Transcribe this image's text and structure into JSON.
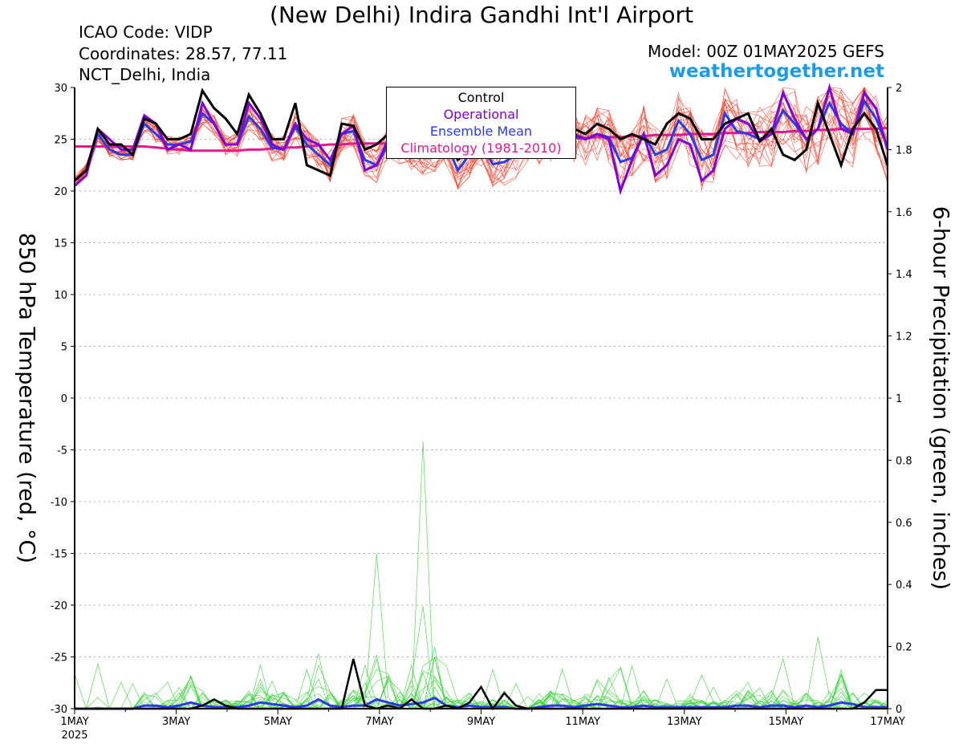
{
  "header": {
    "title": "(New Delhi) Indira Gandhi Int'l Airport",
    "icao": "ICAO Code: VIDP",
    "coordinates": "Coordinates: 28.57, 77.11",
    "location": "NCT_Delhi, India",
    "model": "Model: 00Z 01MAY2025 GEFS",
    "website": "weathertogether.net"
  },
  "legend": {
    "control": "Control",
    "operational": "Operational",
    "ensemble_mean": "Ensemble Mean",
    "climatology": "Climatology (1981-2010)"
  },
  "colors": {
    "control": "#000000",
    "operational": "#7f00d4",
    "ensemble_mean": "#2a3be8",
    "climatology": "#e6188c",
    "members": "#f0412d",
    "precip_members": "#3cd23c",
    "website": "#1e9be6",
    "grid": "#aaaaaa"
  },
  "chart_data": {
    "type": "line",
    "ylabel": "850 hPa Temperature (red, °C)",
    "y2label": "6-hour Precipitation (green, inches)",
    "ylim": [
      -30,
      30
    ],
    "y2lim": [
      0,
      2
    ],
    "yticks": [
      "30",
      "25",
      "20",
      "15",
      "10",
      "5",
      "0",
      "-5",
      "-10",
      "-15",
      "-20",
      "-25",
      "-30"
    ],
    "y2ticks": [
      "2",
      "1.8",
      "1.6",
      "1.4",
      "1.2",
      "1",
      "0.8",
      "0.6",
      "0.4",
      "0.2",
      "0"
    ],
    "xticks": [
      "1MAY",
      "3MAY",
      "5MAY",
      "7MAY",
      "9MAY",
      "11MAY",
      "13MAY",
      "15MAY",
      "17MAY"
    ],
    "xtick_sublabel": "2025",
    "x_range_days": [
      0,
      16
    ],
    "x_step_hours": 6,
    "grid": true,
    "temperature": {
      "control": [
        21.0,
        22.0,
        26.0,
        24.5,
        24.5,
        23.5,
        27.0,
        26.5,
        25.0,
        25.0,
        25.5,
        29.7,
        28.0,
        27.0,
        25.5,
        29.3,
        27.5,
        25.0,
        25.0,
        28.5,
        22.5,
        22.0,
        21.5,
        26.5,
        26.3,
        24.0,
        24.5,
        25.5,
        26.0,
        24.0,
        23.5,
        24.0,
        25.0,
        23.0,
        24.0,
        24.5,
        24.8,
        23.8,
        24.2,
        25.5,
        25.5,
        25.5,
        26.5,
        26.0,
        25.5,
        26.5,
        26.0,
        25.0,
        25.5,
        25.0,
        24.5,
        26.5,
        27.5,
        27.0,
        25.0,
        25.0,
        26.5,
        27.0,
        27.5,
        24.8,
        26.0,
        23.5,
        23.0,
        24.0,
        28.5,
        25.5,
        22.5,
        26.0,
        27.5,
        26.0,
        22.5
      ],
      "operational": [
        20.5,
        21.5,
        26.0,
        25.0,
        24.0,
        24.0,
        27.3,
        26.5,
        24.0,
        24.5,
        24.0,
        28.5,
        26.5,
        24.5,
        24.5,
        28.5,
        27.0,
        24.5,
        24.0,
        26.5,
        25.0,
        24.5,
        23.0,
        25.5,
        26.3,
        22.0,
        22.5,
        25.0,
        24.5,
        24.0,
        23.5,
        24.5,
        25.0,
        23.5,
        24.0,
        25.0,
        24.5,
        24.0,
        24.0,
        25.0,
        24.5,
        25.0,
        25.5,
        25.5,
        25.0,
        25.5,
        25.0,
        20.0,
        23.0,
        25.5,
        21.5,
        22.5,
        25.0,
        24.5,
        21.0,
        22.0,
        26.0,
        27.0,
        26.5,
        24.8,
        25.5,
        29.5,
        27.0,
        25.0,
        26.0,
        30.0,
        26.0,
        25.5,
        29.5,
        28.0,
        24.0
      ],
      "ensemble_mean": [
        21.0,
        22.0,
        25.5,
        24.0,
        23.5,
        23.5,
        26.5,
        25.5,
        24.5,
        24.5,
        24.8,
        27.5,
        26.5,
        24.5,
        24.5,
        27.2,
        26.0,
        24.2,
        24.0,
        26.2,
        24.5,
        23.5,
        22.5,
        25.5,
        25.8,
        23.0,
        22.5,
        24.5,
        24.2,
        23.8,
        23.5,
        23.8,
        24.5,
        22.0,
        23.5,
        24.5,
        22.6,
        22.8,
        23.5,
        24.8,
        24.8,
        25.0,
        25.5,
        25.3,
        25.0,
        25.5,
        25.2,
        22.8,
        23.2,
        25.5,
        23.5,
        24.0,
        26.8,
        25.5,
        23.0,
        23.5,
        27.5,
        25.8,
        25.5,
        25.0,
        25.5,
        27.8,
        26.5,
        25.0,
        26.0,
        28.5,
        26.5,
        25.5,
        28.7,
        27.0,
        24.3
      ],
      "climatology": [
        24.3,
        24.3,
        24.3,
        24.3,
        24.3,
        24.3,
        24.3,
        24.2,
        24.1,
        24.0,
        23.9,
        23.9,
        23.9,
        23.9,
        23.9,
        24.0,
        24.0,
        24.1,
        24.2,
        24.2,
        24.3,
        24.4,
        24.5,
        24.5,
        24.6,
        24.6,
        24.6,
        24.6,
        24.7,
        24.7,
        24.7,
        24.8,
        24.8,
        24.8,
        24.8,
        24.9,
        24.9,
        24.9,
        24.9,
        25.0,
        25.0,
        25.0,
        25.1,
        25.1,
        25.1,
        25.2,
        25.2,
        25.2,
        25.3,
        25.3,
        25.4,
        25.4,
        25.4,
        25.5,
        25.5,
        25.5,
        25.6,
        25.6,
        25.6,
        25.7,
        25.7,
        25.7,
        25.8,
        25.8,
        25.9,
        25.9,
        26.0,
        26.0,
        26.0,
        26.0,
        26.1
      ]
    },
    "precipitation": {
      "control": [
        0,
        0,
        0,
        0,
        0,
        0,
        0,
        0,
        0,
        0,
        0,
        0.01,
        0.03,
        0.01,
        0,
        0,
        0,
        0,
        0,
        0,
        0,
        0,
        0,
        0,
        0.16,
        0.01,
        0,
        0.01,
        0,
        0.03,
        0,
        0,
        0.01,
        0,
        0.02,
        0.07,
        0,
        0.05,
        0.01,
        0,
        0,
        0,
        0,
        0,
        0,
        0,
        0,
        0,
        0,
        0,
        0,
        0,
        0,
        0,
        0,
        0,
        0,
        0,
        0,
        0,
        0,
        0,
        0,
        0,
        0,
        0,
        0,
        0,
        0.02,
        0.06,
        0.06
      ],
      "operational": [
        0,
        0,
        0,
        0,
        0,
        0,
        0,
        0,
        0,
        0,
        0,
        0,
        0,
        0,
        0,
        0,
        0,
        0,
        0,
        0,
        0,
        0,
        0,
        0,
        0,
        0,
        0,
        0,
        0,
        0,
        0,
        0,
        0,
        0,
        0,
        0,
        0,
        0,
        0,
        0,
        0,
        0,
        0,
        0,
        0,
        0,
        0,
        0,
        0,
        0,
        0,
        0,
        0,
        0,
        0,
        0,
        0,
        0,
        0,
        0,
        0,
        0,
        0,
        0,
        0,
        0,
        0,
        0,
        0,
        0,
        0
      ],
      "ensemble_mean": [
        0,
        0,
        0,
        0,
        0,
        0,
        0.01,
        0.01,
        0.005,
        0.01,
        0.02,
        0.01,
        0.005,
        0.005,
        0.005,
        0.01,
        0.02,
        0.015,
        0.01,
        0.005,
        0.01,
        0.03,
        0.01,
        0.005,
        0.01,
        0.01,
        0.03,
        0.02,
        0.01,
        0.015,
        0.02,
        0.035,
        0.01,
        0.005,
        0.01,
        0.005,
        0.005,
        0.005,
        0,
        0,
        0.005,
        0.01,
        0.01,
        0.005,
        0.01,
        0.015,
        0.01,
        0.005,
        0.005,
        0.01,
        0.005,
        0.005,
        0.005,
        0.005,
        0.005,
        0.005,
        0.005,
        0.01,
        0.01,
        0.005,
        0.01,
        0.01,
        0.005,
        0.01,
        0.005,
        0.01,
        0.02,
        0.015,
        0.005,
        0.005,
        0.005
      ]
    }
  }
}
